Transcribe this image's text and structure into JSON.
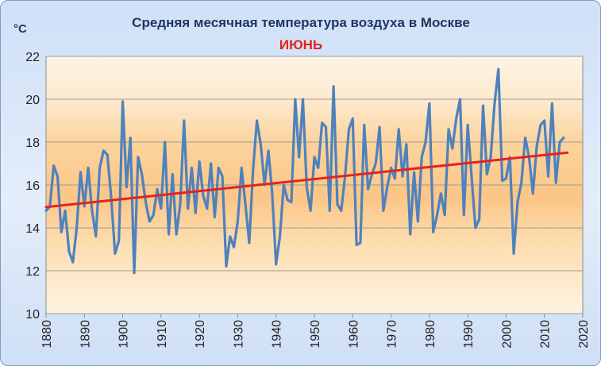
{
  "chart_data": {
    "type": "line",
    "title": "Средняя месячная температура воздуха в Москве",
    "subtitle": "ИЮНЬ",
    "ylabel": "°C",
    "xlabel": "",
    "xlim": [
      1880,
      2020
    ],
    "ylim": [
      10,
      22
    ],
    "x_ticks": [
      1880,
      1890,
      1900,
      1910,
      1920,
      1930,
      1940,
      1950,
      1960,
      1970,
      1980,
      1990,
      2000,
      2010,
      2020
    ],
    "y_ticks": [
      10,
      12,
      14,
      16,
      18,
      20,
      22
    ],
    "grid": "horizontal",
    "legend": "none",
    "series": [
      {
        "color": "#4f81bd",
        "x_start": 1880,
        "x_step": 1,
        "values": [
          14.8,
          15.0,
          16.9,
          16.4,
          13.8,
          14.8,
          12.9,
          12.4,
          14.0,
          16.6,
          15.0,
          16.8,
          14.8,
          13.6,
          16.8,
          17.6,
          17.4,
          15.4,
          12.8,
          13.4,
          19.9,
          15.9,
          18.2,
          11.9,
          17.3,
          16.5,
          15.2,
          14.3,
          14.6,
          15.8,
          14.9,
          18.0,
          13.7,
          16.5,
          13.7,
          15.1,
          19.0,
          14.9,
          16.8,
          14.7,
          17.1,
          15.5,
          14.9,
          17.0,
          14.5,
          16.8,
          16.4,
          12.2,
          13.6,
          13.1,
          14.3,
          16.8,
          15.1,
          13.3,
          16.7,
          19.0,
          17.9,
          16.0,
          17.6,
          15.6,
          12.3,
          13.6,
          16.0,
          15.3,
          15.2,
          20.0,
          17.3,
          20.0,
          15.9,
          14.8,
          17.3,
          16.8,
          18.9,
          18.7,
          14.8,
          20.6,
          15.1,
          14.8,
          16.4,
          18.6,
          19.1,
          13.2,
          13.3,
          18.8,
          15.8,
          16.5,
          17.0,
          18.7,
          14.8,
          15.9,
          16.8,
          16.3,
          18.6,
          16.4,
          17.9,
          13.7,
          16.6,
          14.3,
          17.3,
          18.0,
          19.8,
          13.8,
          14.6,
          15.6,
          14.6,
          18.6,
          17.7,
          19.1,
          20.0,
          14.6,
          18.8,
          16.4,
          14.0,
          14.4,
          19.7,
          16.5,
          17.3,
          19.8,
          21.4,
          16.2,
          16.3,
          17.3,
          12.8,
          15.2,
          16.1,
          18.2,
          17.3,
          15.6,
          17.8,
          18.8,
          19.0,
          16.4,
          19.8,
          16.1,
          18.0,
          18.2
        ]
      },
      {
        "color": "#e5231b",
        "type": "trend",
        "x": [
          1880,
          2016
        ],
        "values": [
          14.97,
          17.51
        ]
      }
    ]
  }
}
